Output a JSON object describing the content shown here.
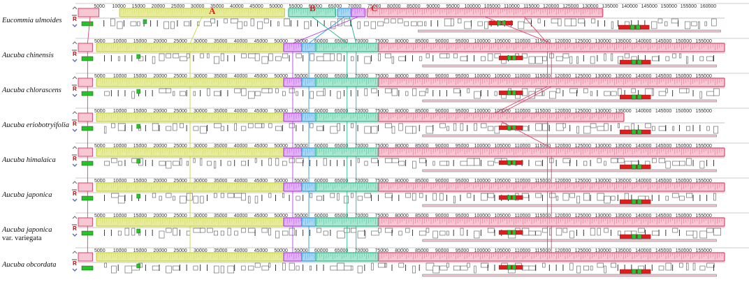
{
  "figure": {
    "block_labels": [
      "A",
      "B",
      "C"
    ],
    "control_label": "R",
    "genomes": [
      {
        "name": "Eucommia ulmoides",
        "variety": "",
        "ticks": [
          "5000",
          "10000",
          "15000",
          "20000",
          "25000",
          "30000",
          "35000",
          "40000",
          "45000",
          "50000",
          "55000",
          "60000",
          "65000",
          "70000",
          "75000",
          "80000",
          "85000",
          "90000",
          "95000",
          "100000",
          "105000",
          "110000",
          "115000",
          "120000",
          "125000",
          "130000",
          "135000",
          "140000",
          "145000",
          "150000",
          "155000",
          "160000"
        ]
      },
      {
        "name": "Aucuba chinensis",
        "variety": "",
        "ticks": [
          "5000",
          "10000",
          "15000",
          "20000",
          "25000",
          "30000",
          "35000",
          "40000",
          "45000",
          "50000",
          "55000",
          "60000",
          "65000",
          "70000",
          "75000",
          "80000",
          "85000",
          "90000",
          "95000",
          "100000",
          "105000",
          "110000",
          "115000",
          "120000",
          "125000",
          "130000",
          "135000",
          "140000",
          "145000",
          "150000",
          "155000"
        ]
      },
      {
        "name": "Aucuba chlorascens",
        "variety": "",
        "ticks": [
          "5000",
          "10000",
          "15000",
          "20000",
          "25000",
          "30000",
          "35000",
          "40000",
          "45000",
          "50000",
          "55000",
          "60000",
          "65000",
          "70000",
          "75000",
          "80000",
          "85000",
          "90000",
          "95000",
          "100000",
          "105000",
          "110000",
          "115000",
          "120000",
          "125000",
          "130000",
          "135000",
          "140000",
          "145000",
          "150000",
          "155000"
        ]
      },
      {
        "name": "Aucuba eriobotryifolia",
        "variety": "",
        "ticks": [
          "5000",
          "10000",
          "15000",
          "20000",
          "25000",
          "30000",
          "35000",
          "40000",
          "45000",
          "50000",
          "55000",
          "60000",
          "65000",
          "70000",
          "75000",
          "80000",
          "85000",
          "90000",
          "95000",
          "100000",
          "105000",
          "110000",
          "115000",
          "120000",
          "125000",
          "130000",
          "135000",
          "140000",
          "145000",
          "150000",
          "155000"
        ]
      },
      {
        "name": "Aucuba himalaica",
        "variety": "",
        "ticks": [
          "5000",
          "10000",
          "15000",
          "20000",
          "25000",
          "30000",
          "35000",
          "40000",
          "45000",
          "50000",
          "55000",
          "60000",
          "65000",
          "70000",
          "75000",
          "80000",
          "85000",
          "90000",
          "95000",
          "100000",
          "105000",
          "110000",
          "115000",
          "120000",
          "125000",
          "130000",
          "135000",
          "140000",
          "145000",
          "150000",
          "155000"
        ]
      },
      {
        "name": "Aucuba japonica",
        "variety": "",
        "ticks": [
          "5000",
          "10000",
          "15000",
          "20000",
          "25000",
          "30000",
          "35000",
          "40000",
          "45000",
          "50000",
          "55000",
          "60000",
          "65000",
          "70000",
          "75000",
          "80000",
          "85000",
          "90000",
          "95000",
          "100000",
          "105000",
          "110000",
          "115000",
          "120000",
          "125000",
          "130000",
          "135000",
          "140000",
          "145000",
          "150000",
          "155000"
        ]
      },
      {
        "name": "Aucuba japonica",
        "variety": "var. variegata",
        "ticks": [
          "5000",
          "10000",
          "15000",
          "20000",
          "25000",
          "30000",
          "35000",
          "40000",
          "45000",
          "50000",
          "55000",
          "60000",
          "65000",
          "70000",
          "75000",
          "80000",
          "85000",
          "90000",
          "95000",
          "100000",
          "105000",
          "110000",
          "115000",
          "120000",
          "125000",
          "130000",
          "135000",
          "140000",
          "145000",
          "150000",
          "155000"
        ]
      },
      {
        "name": "Aucuba obcordata",
        "variety": "",
        "ticks": [
          "5000",
          "10000",
          "15000",
          "20000",
          "25000",
          "30000",
          "35000",
          "40000",
          "45000",
          "50000",
          "55000",
          "60000",
          "65000",
          "70000",
          "75000",
          "80000",
          "85000",
          "90000",
          "95000",
          "100000",
          "105000",
          "110000",
          "115000",
          "120000",
          "125000",
          "130000",
          "135000",
          "140000",
          "145000",
          "150000",
          "155000"
        ]
      }
    ],
    "colors": {
      "block_yellow": "#c8d43a",
      "block_yellow_fill": "#e6ec9c",
      "block_green": "#25b88a",
      "block_green_fill": "#a8e6cf",
      "block_blue": "#2a9ad8",
      "block_blue_fill": "#a9d6f3",
      "block_purple": "#b040e0",
      "block_purple_fill": "#e2b2f5",
      "block_pink": "#e0426a",
      "block_pink_fill": "#f7c7d3",
      "block_teal": "#20b0a0",
      "gene_red": "#e31b1b",
      "gene_green": "#22c822"
    }
  }
}
